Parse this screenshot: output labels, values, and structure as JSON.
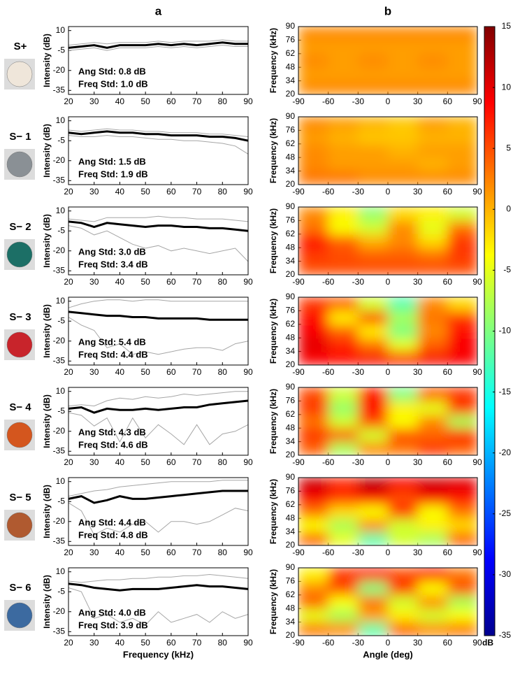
{
  "chart_data": [
    {
      "type": "line",
      "panel_label": "a",
      "row_label": "S+",
      "ylabel": "Intensity (dB)",
      "annotations": [
        "Ang Std: 0.8 dB",
        "Freq Std: 1.0 dB"
      ],
      "x": [
        20,
        25,
        30,
        35,
        40,
        45,
        50,
        55,
        60,
        65,
        70,
        75,
        80,
        85,
        90
      ],
      "xlim": [
        20,
        90
      ],
      "xticks": [
        20,
        30,
        40,
        50,
        60,
        70,
        80,
        90
      ],
      "ylim": [
        -38,
        13
      ],
      "yticks": [
        10,
        -5,
        -20,
        -35
      ],
      "series": [
        {
          "color": "#a6a6a6",
          "values": [
            -1,
            0,
            1,
            0,
            1,
            1,
            1,
            2,
            1,
            2,
            2,
            2,
            3,
            2,
            2
          ]
        },
        {
          "color": "#a6a6a6",
          "values": [
            -5,
            -4,
            -3,
            -5,
            -3,
            -3,
            -3,
            -2,
            -3,
            -2,
            -3,
            -2,
            -1,
            -2,
            -2
          ]
        },
        {
          "color": "#000000",
          "values": [
            -3,
            -2,
            -1,
            -3,
            -1,
            -1,
            -1,
            0,
            -1,
            0,
            -1,
            0,
            1,
            0,
            0
          ]
        }
      ]
    },
    {
      "type": "line",
      "row_label": "S− 1",
      "ylabel": "Intensity (dB)",
      "annotations": [
        "Ang Std: 1.5 dB",
        "Freq Std: 1.9 dB"
      ],
      "x": [
        20,
        25,
        30,
        35,
        40,
        45,
        50,
        55,
        60,
        65,
        70,
        75,
        80,
        85,
        90
      ],
      "xlim": [
        20,
        90
      ],
      "xticks": [
        20,
        30,
        40,
        50,
        60,
        70,
        80,
        90
      ],
      "ylim": [
        -38,
        13
      ],
      "yticks": [
        10,
        -5,
        -20,
        -35
      ],
      "series": [
        {
          "color": "#a6a6a6",
          "values": [
            3,
            2,
            3,
            4,
            3,
            3,
            2,
            2,
            1,
            1,
            1,
            0,
            0,
            -1,
            -2
          ]
        },
        {
          "color": "#a6a6a6",
          "values": [
            -1,
            -2,
            -2,
            -1,
            -2,
            -2,
            -3,
            -4,
            -4,
            -5,
            -5,
            -6,
            -7,
            -9,
            -15
          ]
        },
        {
          "color": "#000000",
          "values": [
            1,
            0,
            1,
            2,
            1,
            1,
            0,
            0,
            -1,
            -1,
            -1,
            -2,
            -2,
            -3,
            -5
          ]
        }
      ]
    },
    {
      "type": "line",
      "row_label": "S− 2",
      "ylabel": "Intensity (dB)",
      "annotations": [
        "Ang Std: 3.0 dB",
        "Freq Std: 3.4 dB"
      ],
      "x": [
        20,
        25,
        30,
        35,
        40,
        45,
        50,
        55,
        60,
        65,
        70,
        75,
        80,
        85,
        90
      ],
      "xlim": [
        20,
        90
      ],
      "xticks": [
        20,
        30,
        40,
        50,
        60,
        70,
        80,
        90
      ],
      "ylim": [
        -38,
        13
      ],
      "yticks": [
        10,
        -5,
        -20,
        -35
      ],
      "series": [
        {
          "color": "#a6a6a6",
          "values": [
            4,
            3,
            2,
            5,
            5,
            5,
            5,
            6,
            5,
            5,
            4,
            4,
            4,
            3,
            2
          ]
        },
        {
          "color": "#a6a6a6",
          "values": [
            -1,
            -3,
            -8,
            -5,
            -10,
            -15,
            -18,
            -16,
            -20,
            -18,
            -20,
            -22,
            -20,
            -18,
            -28
          ]
        },
        {
          "color": "#000000",
          "values": [
            2,
            1,
            -2,
            1,
            0,
            -1,
            -2,
            -1,
            -1,
            -2,
            -2,
            -3,
            -3,
            -4,
            -5
          ]
        }
      ]
    },
    {
      "type": "line",
      "row_label": "S− 3",
      "ylabel": "Intensity (dB)",
      "annotations": [
        "Ang Std: 5.4 dB",
        "Freq Std: 4.4 dB"
      ],
      "x": [
        20,
        25,
        30,
        35,
        40,
        45,
        50,
        55,
        60,
        65,
        70,
        75,
        80,
        85,
        90
      ],
      "xlim": [
        20,
        90
      ],
      "xticks": [
        20,
        30,
        40,
        50,
        60,
        70,
        80,
        90
      ],
      "ylim": [
        -38,
        13
      ],
      "yticks": [
        10,
        -5,
        -20,
        -35
      ],
      "series": [
        {
          "color": "#a6a6a6",
          "values": [
            5,
            8,
            10,
            11,
            11,
            10,
            11,
            11,
            10,
            10,
            10,
            10,
            10,
            10,
            10
          ]
        },
        {
          "color": "#a6a6a6",
          "values": [
            -2,
            -8,
            -12,
            -25,
            -22,
            -30,
            -28,
            -30,
            -28,
            -26,
            -25,
            -25,
            -27,
            -22,
            -20
          ]
        },
        {
          "color": "#000000",
          "values": [
            2,
            1,
            0,
            -1,
            -1,
            -2,
            -2,
            -3,
            -3,
            -3,
            -3,
            -4,
            -4,
            -4,
            -4
          ]
        }
      ]
    },
    {
      "type": "line",
      "row_label": "S− 4",
      "ylabel": "Intensity (dB)",
      "annotations": [
        "Ang Std: 4.3 dB",
        "Freq Std: 4.6 dB"
      ],
      "x": [
        20,
        25,
        30,
        35,
        40,
        45,
        50,
        55,
        60,
        65,
        70,
        75,
        80,
        85,
        90
      ],
      "xlim": [
        20,
        90
      ],
      "xticks": [
        20,
        30,
        40,
        50,
        60,
        70,
        80,
        90
      ],
      "ylim": [
        -38,
        13
      ],
      "yticks": [
        10,
        -5,
        -20,
        -35
      ],
      "series": [
        {
          "color": "#a6a6a6",
          "values": [
            -1,
            0,
            -1,
            3,
            5,
            4,
            6,
            5,
            6,
            8,
            7,
            8,
            9,
            10,
            10
          ]
        },
        {
          "color": "#a6a6a6",
          "values": [
            -6,
            -8,
            -16,
            -10,
            -28,
            -10,
            -25,
            -15,
            -22,
            -30,
            -15,
            -30,
            -22,
            -20,
            -15
          ]
        },
        {
          "color": "#000000",
          "values": [
            -3,
            -2,
            -6,
            -3,
            -4,
            -4,
            -3,
            -4,
            -3,
            -2,
            -2,
            0,
            1,
            2,
            3
          ]
        }
      ]
    },
    {
      "type": "line",
      "row_label": "S− 5",
      "ylabel": "Intensity (dB)",
      "annotations": [
        "Ang Std: 4.4 dB",
        "Freq Std: 4.8 dB"
      ],
      "x": [
        20,
        25,
        30,
        35,
        40,
        45,
        50,
        55,
        60,
        65,
        70,
        75,
        80,
        85,
        90
      ],
      "xlim": [
        20,
        90
      ],
      "xticks": [
        20,
        30,
        40,
        50,
        60,
        70,
        80,
        90
      ],
      "ylim": [
        -38,
        13
      ],
      "yticks": [
        10,
        -5,
        -20,
        -35
      ],
      "series": [
        {
          "color": "#a6a6a6",
          "values": [
            -1,
            1,
            3,
            4,
            6,
            7,
            8,
            9,
            10,
            10,
            10,
            10,
            11,
            11,
            11
          ]
        },
        {
          "color": "#a6a6a6",
          "values": [
            -6,
            -12,
            -30,
            -25,
            -28,
            -22,
            -20,
            -28,
            -20,
            -20,
            -22,
            -20,
            -15,
            -10,
            -12
          ]
        },
        {
          "color": "#000000",
          "values": [
            -3,
            -1,
            -6,
            -4,
            -1,
            -3,
            -3,
            -2,
            -1,
            0,
            1,
            2,
            3,
            3,
            3
          ]
        }
      ]
    },
    {
      "type": "line",
      "row_label": "S− 6",
      "ylabel": "Intensity (dB)",
      "xlabel": "Frequency (kHz)",
      "annotations": [
        "Ang Std: 4.0 dB",
        "Freq Std: 3.9 dB"
      ],
      "x": [
        20,
        25,
        30,
        35,
        40,
        45,
        50,
        55,
        60,
        65,
        70,
        75,
        80,
        85,
        90
      ],
      "xlim": [
        20,
        90
      ],
      "xticks": [
        20,
        30,
        40,
        50,
        60,
        70,
        80,
        90
      ],
      "ylim": [
        -38,
        13
      ],
      "yticks": [
        10,
        -5,
        -20,
        -35
      ],
      "series": [
        {
          "color": "#a6a6a6",
          "values": [
            3,
            2,
            3,
            4,
            4,
            5,
            5,
            6,
            6,
            7,
            7,
            8,
            7,
            6,
            5
          ]
        },
        {
          "color": "#a6a6a6",
          "values": [
            -2,
            -5,
            -25,
            -22,
            -28,
            -25,
            -30,
            -20,
            -28,
            -25,
            -22,
            -28,
            -20,
            -25,
            -22
          ]
        },
        {
          "color": "#000000",
          "values": [
            1,
            0,
            -2,
            -3,
            -4,
            -3,
            -3,
            -3,
            -2,
            -1,
            0,
            -1,
            -1,
            -2,
            -3
          ]
        }
      ]
    },
    {
      "type": "heatmap",
      "panel_label": "b",
      "ylabel": "Frequency (kHz)",
      "x": [
        -75,
        -45,
        -15,
        15,
        45,
        75
      ],
      "y": [
        27,
        41,
        55,
        69,
        83
      ],
      "xlim": [
        -90,
        90
      ],
      "xticks": [
        -90,
        -60,
        -30,
        0,
        30,
        60,
        90
      ],
      "ylim": [
        20,
        90
      ],
      "yticks": [
        20,
        34,
        48,
        62,
        76,
        90
      ],
      "z": [
        [
          2,
          2,
          2,
          2,
          2,
          2
        ],
        [
          1,
          1,
          1,
          1,
          1,
          1
        ],
        [
          2,
          1,
          2,
          1,
          2,
          1
        ],
        [
          1,
          1,
          1,
          1,
          1,
          1
        ],
        [
          2,
          2,
          2,
          2,
          2,
          2
        ]
      ]
    },
    {
      "type": "heatmap",
      "ylabel": "Frequency (kHz)",
      "x": [
        -75,
        -45,
        -15,
        15,
        45,
        75
      ],
      "y": [
        27,
        41,
        55,
        69,
        83
      ],
      "xlim": [
        -90,
        90
      ],
      "xticks": [
        -90,
        -60,
        -30,
        0,
        30,
        60,
        90
      ],
      "ylim": [
        20,
        90
      ],
      "yticks": [
        20,
        34,
        48,
        62,
        76,
        90
      ],
      "z": [
        [
          3,
          3,
          2,
          2,
          2,
          2
        ],
        [
          2,
          1,
          1,
          1,
          0,
          1
        ],
        [
          2,
          1,
          1,
          0,
          1,
          1
        ],
        [
          1,
          0,
          -1,
          -1,
          0,
          0
        ],
        [
          2,
          1,
          0,
          -1,
          1,
          0
        ]
      ]
    },
    {
      "type": "heatmap",
      "ylabel": "Frequency (kHz)",
      "x": [
        -75,
        -45,
        -15,
        15,
        45,
        75
      ],
      "y": [
        27,
        41,
        55,
        69,
        83
      ],
      "xlim": [
        -90,
        90
      ],
      "xticks": [
        -90,
        -60,
        -30,
        0,
        30,
        60,
        90
      ],
      "ylim": [
        20,
        90
      ],
      "yticks": [
        20,
        34,
        48,
        62,
        76,
        90
      ],
      "z": [
        [
          5,
          5,
          5,
          5,
          5,
          5
        ],
        [
          6,
          5,
          4,
          4,
          3,
          6
        ],
        [
          8,
          4,
          0,
          2,
          -2,
          6
        ],
        [
          3,
          -4,
          -6,
          2,
          -5,
          3
        ],
        [
          2,
          -3,
          -9,
          -2,
          -3,
          -6
        ]
      ]
    },
    {
      "type": "heatmap",
      "ylabel": "Frequency (kHz)",
      "x": [
        -75,
        -45,
        -15,
        15,
        45,
        75
      ],
      "y": [
        27,
        41,
        55,
        69,
        83
      ],
      "xlim": [
        -90,
        90
      ],
      "xticks": [
        -90,
        -60,
        -30,
        0,
        30,
        60,
        90
      ],
      "ylim": [
        20,
        90
      ],
      "yticks": [
        20,
        34,
        48,
        62,
        76,
        90
      ],
      "z": [
        [
          9,
          8,
          9,
          8,
          9,
          9
        ],
        [
          10,
          7,
          3,
          -5,
          4,
          9
        ],
        [
          9,
          4,
          -3,
          -10,
          2,
          8
        ],
        [
          8,
          -3,
          5,
          -8,
          3,
          6
        ],
        [
          6,
          4,
          -6,
          -12,
          2,
          -2
        ]
      ]
    },
    {
      "type": "heatmap",
      "ylabel": "Frequency (kHz)",
      "x": [
        -75,
        -45,
        -15,
        15,
        45,
        75
      ],
      "y": [
        27,
        41,
        55,
        69,
        83
      ],
      "xlim": [
        -90,
        90
      ],
      "xticks": [
        -90,
        -60,
        -30,
        0,
        30,
        60,
        90
      ],
      "ylim": [
        20,
        90
      ],
      "yticks": [
        20,
        34,
        48,
        62,
        76,
        90
      ],
      "z": [
        [
          4,
          -8,
          2,
          3,
          6,
          4
        ],
        [
          6,
          4,
          -6,
          5,
          4,
          7
        ],
        [
          3,
          -6,
          5,
          -4,
          2,
          -8
        ],
        [
          6,
          -9,
          8,
          -3,
          -5,
          6
        ],
        [
          5,
          -6,
          7,
          -10,
          4,
          6
        ]
      ]
    },
    {
      "type": "heatmap",
      "ylabel": "Frequency (kHz)",
      "x": [
        -75,
        -45,
        -15,
        15,
        45,
        75
      ],
      "y": [
        27,
        41,
        55,
        69,
        83
      ],
      "xlim": [
        -90,
        90
      ],
      "xticks": [
        -90,
        -60,
        -30,
        0,
        30,
        60,
        90
      ],
      "ylim": [
        20,
        90
      ],
      "yticks": [
        20,
        34,
        48,
        62,
        76,
        90
      ],
      "z": [
        [
          4,
          -5,
          -12,
          -6,
          -8,
          4
        ],
        [
          -4,
          -8,
          2,
          -6,
          -3,
          -2
        ],
        [
          3,
          -2,
          -4,
          6,
          -4,
          3
        ],
        [
          9,
          6,
          8,
          5,
          9,
          8
        ],
        [
          11,
          7,
          12,
          9,
          11,
          10
        ]
      ]
    },
    {
      "type": "heatmap",
      "ylabel": "Frequency (kHz)",
      "xlabel": "Angle (deg)",
      "x": [
        -75,
        -45,
        -15,
        15,
        45,
        75
      ],
      "y": [
        27,
        41,
        55,
        69,
        83
      ],
      "xlim": [
        -90,
        90
      ],
      "xticks": [
        -90,
        -60,
        -30,
        0,
        30,
        60,
        90
      ],
      "ylim": [
        20,
        90
      ],
      "yticks": [
        20,
        34,
        48,
        62,
        76,
        90
      ],
      "z": [
        [
          3,
          2,
          -12,
          4,
          2,
          3
        ],
        [
          -5,
          -8,
          1,
          -3,
          -6,
          -4
        ],
        [
          4,
          -4,
          3,
          -6,
          2,
          -8
        ],
        [
          2,
          5,
          -10,
          6,
          -4,
          5
        ],
        [
          -3,
          6,
          8,
          5,
          8,
          3
        ]
      ]
    },
    {
      "type": "colorbar",
      "label": "dB",
      "clim": [
        -35,
        15
      ],
      "ticks": [
        15,
        10,
        5,
        0,
        -5,
        -10,
        -15,
        -20,
        -25,
        -30,
        -35
      ]
    }
  ]
}
